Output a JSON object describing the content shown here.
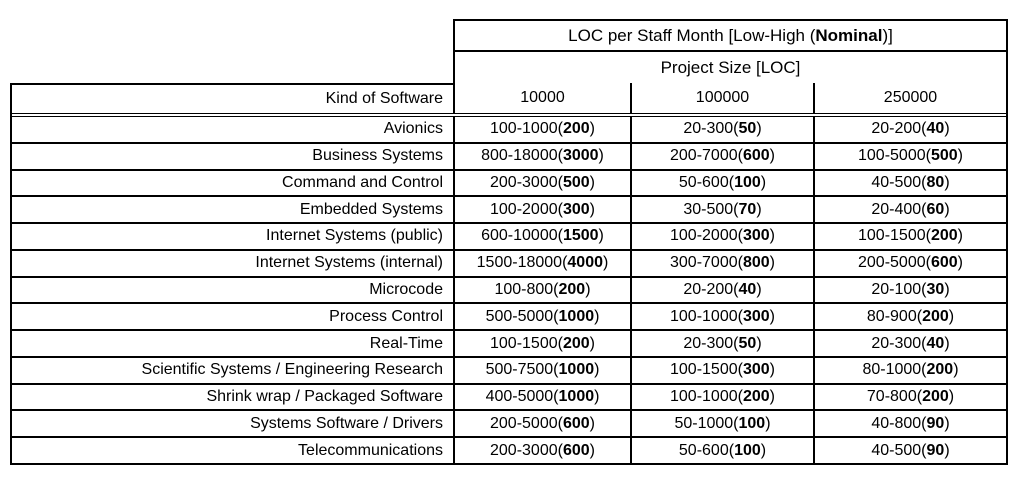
{
  "chart_data": {
    "type": "table",
    "title": "LOC per Staff Month [Low-High (Nominal)]",
    "title_parts": {
      "pre": "LOC per Staff Month [Low-High (",
      "bold": "Nominal",
      "post": ")]"
    },
    "column_group_label": "Project Size [LOC]",
    "row_header": "Kind of Software",
    "columns": [
      "10000",
      "100000",
      "250000"
    ],
    "rows": [
      {
        "label": "Avionics",
        "cells": [
          {
            "pre": "100-1000(",
            "bold": "200",
            "post": ")"
          },
          {
            "pre": "20-300(",
            "bold": "50",
            "post": ")"
          },
          {
            "pre": "20-200(",
            "bold": "40",
            "post": ")"
          }
        ]
      },
      {
        "label": "Business Systems",
        "cells": [
          {
            "pre": "800-18000(",
            "bold": "3000",
            "post": ")"
          },
          {
            "pre": "200-7000(",
            "bold": "600",
            "post": ")"
          },
          {
            "pre": "100-5000(",
            "bold": "500",
            "post": ")"
          }
        ]
      },
      {
        "label": "Command and Control",
        "cells": [
          {
            "pre": "200-3000(",
            "bold": "500",
            "post": ")"
          },
          {
            "pre": "50-600(",
            "bold": "100",
            "post": ")"
          },
          {
            "pre": "40-500(",
            "bold": "80",
            "post": ")"
          }
        ]
      },
      {
        "label": "Embedded Systems",
        "cells": [
          {
            "pre": "100-2000(",
            "bold": "300",
            "post": ")"
          },
          {
            "pre": "30-500(",
            "bold": "70",
            "post": ")"
          },
          {
            "pre": "20-400(",
            "bold": "60",
            "post": ")"
          }
        ]
      },
      {
        "label": "Internet Systems (public)",
        "cells": [
          {
            "pre": "600-10000(",
            "bold": "1500",
            "post": ")"
          },
          {
            "pre": "100-2000(",
            "bold": "300",
            "post": ")"
          },
          {
            "pre": "100-1500(",
            "bold": "200",
            "post": ")"
          }
        ]
      },
      {
        "label": "Internet Systems (internal)",
        "cells": [
          {
            "pre": "1500-18000(",
            "bold": "4000",
            "post": ")"
          },
          {
            "pre": "300-7000(",
            "bold": "800",
            "post": ")"
          },
          {
            "pre": "200-5000(",
            "bold": "600",
            "post": ")"
          }
        ]
      },
      {
        "label": "Microcode",
        "cells": [
          {
            "pre": "100-800(",
            "bold": "200",
            "post": ")"
          },
          {
            "pre": "20-200(",
            "bold": "40",
            "post": ")"
          },
          {
            "pre": "20-100(",
            "bold": "30",
            "post": ")"
          }
        ]
      },
      {
        "label": "Process Control",
        "cells": [
          {
            "pre": "500-5000(",
            "bold": "1000",
            "post": ")"
          },
          {
            "pre": "100-1000(",
            "bold": "300",
            "post": ")"
          },
          {
            "pre": "80-900(",
            "bold": "200",
            "post": ")"
          }
        ]
      },
      {
        "label": "Real-Time",
        "cells": [
          {
            "pre": "100-1500(",
            "bold": "200",
            "post": ")"
          },
          {
            "pre": "20-300(",
            "bold": "50",
            "post": ")"
          },
          {
            "pre": "20-300(",
            "bold": "40",
            "post": ")"
          }
        ]
      },
      {
        "label": "Scientific Systems / Engineering Research",
        "cells": [
          {
            "pre": "500-7500(",
            "bold": "1000",
            "post": ")"
          },
          {
            "pre": "100-1500(",
            "bold": "300",
            "post": ")"
          },
          {
            "pre": "80-1000(",
            "bold": "200",
            "post": ")"
          }
        ]
      },
      {
        "label": "Shrink wrap / Packaged Software",
        "cells": [
          {
            "pre": "400-5000(",
            "bold": "1000",
            "post": ")"
          },
          {
            "pre": "100-1000(",
            "bold": "200",
            "post": ")"
          },
          {
            "pre": "70-800(",
            "bold": "200",
            "post": ")"
          }
        ]
      },
      {
        "label": "Systems Software / Drivers",
        "cells": [
          {
            "pre": "200-5000(",
            "bold": "600",
            "post": ")"
          },
          {
            "pre": "50-1000(",
            "bold": "100",
            "post": ")"
          },
          {
            "pre": "40-800(",
            "bold": "90",
            "post": ")"
          }
        ]
      },
      {
        "label": "Telecommunications",
        "cells": [
          {
            "pre": "200-3000(",
            "bold": "600",
            "post": ")"
          },
          {
            "pre": "50-600(",
            "bold": "100",
            "post": ")"
          },
          {
            "pre": "40-500(",
            "bold": "90",
            "post": ")"
          }
        ]
      }
    ]
  },
  "colors": {
    "text": "#000000",
    "border": "#000000",
    "background": "#ffffff"
  }
}
